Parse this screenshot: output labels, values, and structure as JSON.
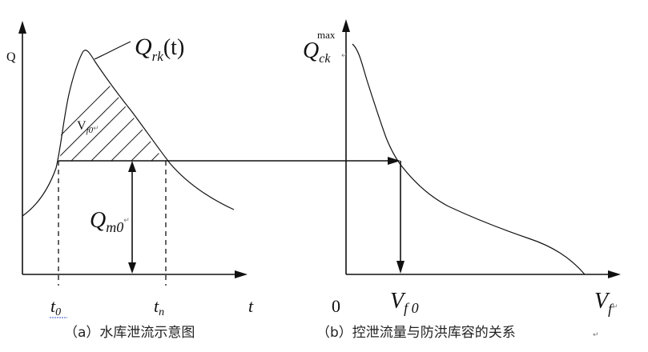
{
  "left_panel": {
    "y_axis_label": "Q",
    "curve_label_main": "Q",
    "curve_label_sub": "rk",
    "curve_label_arg": "(t)",
    "area_label_main": "V",
    "area_label_sub": "f0",
    "flow_label_main": "Q",
    "flow_label_sub": "m0",
    "tick_t0_main": "t",
    "tick_t0_sub": "0",
    "tick_tn_main": "t",
    "tick_tn_sub": "n",
    "x_axis_label": "t",
    "caption": "（a）水库泄流示意图"
  },
  "right_panel": {
    "y_axis_label_main": "Q",
    "y_axis_label_sub": "ck",
    "y_axis_label_sup": "max",
    "origin_label": "0",
    "tick_vf0_main": "V",
    "tick_vf0_sub": "f 0",
    "x_axis_label_main": "V",
    "x_axis_label_sub": "f",
    "caption": "（b）控泄流量与防洪库容的关系"
  },
  "paragraph_mark": "↵"
}
